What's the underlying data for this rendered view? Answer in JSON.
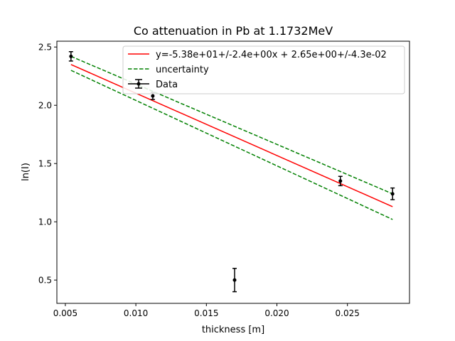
{
  "chart_data": {
    "type": "scatter",
    "title": "Co attenuation in Pb at 1.1732MeV",
    "xlabel": "thickness [m]",
    "ylabel": "ln(I)",
    "xlim": [
      0.0044,
      0.0294
    ],
    "ylim": [
      0.3,
      2.55
    ],
    "xticks": [
      0.005,
      0.01,
      0.015,
      0.02,
      0.025
    ],
    "xtick_labels": [
      "0.005",
      "0.010",
      "0.015",
      "0.020",
      "0.025"
    ],
    "yticks": [
      0.5,
      1.0,
      1.5,
      2.0,
      2.5
    ],
    "ytick_labels": [
      "0.5",
      "1.0",
      "1.5",
      "2.0",
      "2.5"
    ],
    "grid": false,
    "legend_placement": "top-right",
    "data": {
      "name": "Data",
      "color": "#000000",
      "points": [
        {
          "x": 0.0054,
          "y": 2.42,
          "yerr": 0.04
        },
        {
          "x": 0.0112,
          "y": 2.08,
          "yerr": 0.03
        },
        {
          "x": 0.017,
          "y": 0.5,
          "yerr": 0.1
        },
        {
          "x": 0.0245,
          "y": 1.35,
          "yerr": 0.04
        },
        {
          "x": 0.0282,
          "y": 1.24,
          "yerr": 0.05
        }
      ]
    },
    "fit": {
      "name": "y=-5.38e+01+/-2.4e+00x + 2.65e+00+/-4.3e-02",
      "color": "#ff0000",
      "x": [
        0.0054,
        0.0282
      ],
      "y": [
        2.35,
        1.13
      ]
    },
    "uncertainty": {
      "name": "uncertainty",
      "color": "#008000",
      "upper": {
        "x": [
          0.0054,
          0.0282
        ],
        "y": [
          2.42,
          1.24
        ]
      },
      "lower": {
        "x": [
          0.0054,
          0.0282
        ],
        "y": [
          2.3,
          1.02
        ]
      }
    }
  }
}
